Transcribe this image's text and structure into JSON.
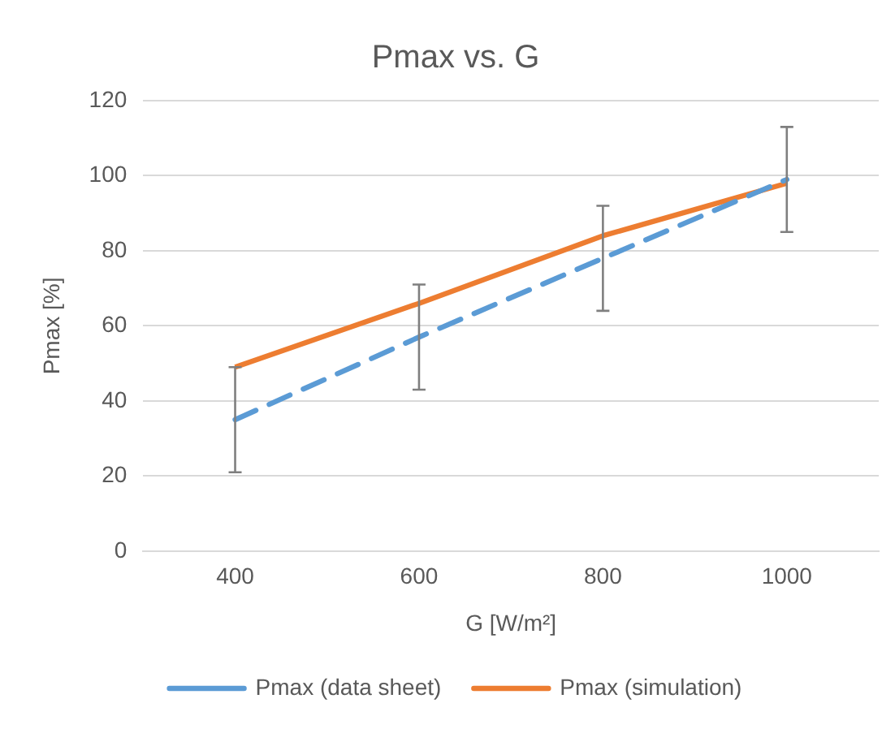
{
  "chart_data": {
    "type": "line",
    "title": "Pmax vs. G",
    "xlabel": "G [W/m²]",
    "ylabel": "Pmax [%]",
    "categories": [
      "400",
      "600",
      "800",
      "1000"
    ],
    "series": [
      {
        "name": "Pmax (data sheet)",
        "color": "#5b9bd5",
        "values": [
          35,
          57,
          78,
          99
        ],
        "line_style": "dashed",
        "errors": [
          14,
          14,
          14,
          14
        ]
      },
      {
        "name": "Pmax (simulation)",
        "color": "#ed7d31",
        "values": [
          49,
          66,
          84,
          98
        ],
        "line_style": "solid"
      }
    ],
    "ylim": [
      0,
      120
    ],
    "yticks": [
      0,
      20,
      40,
      60,
      80,
      100,
      120
    ],
    "grid": "y",
    "legend": "bottom"
  }
}
